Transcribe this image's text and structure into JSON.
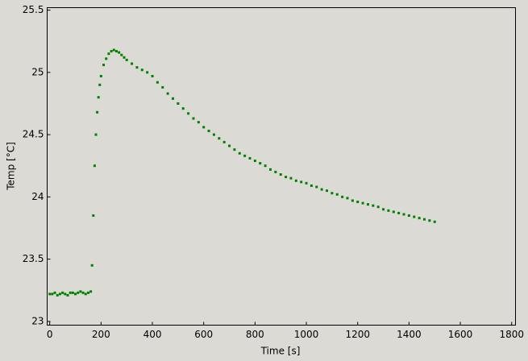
{
  "chart_data": {
    "type": "scatter",
    "xlabel": "Time [s]",
    "ylabel": "Temp [°C]",
    "color": "#008000",
    "grid": false,
    "xlim": [
      -10,
      1815
    ],
    "ylim": [
      22.97,
      25.52
    ],
    "xticks": [
      0,
      200,
      400,
      600,
      800,
      1000,
      1200,
      1400,
      1600,
      1800
    ],
    "yticks": [
      23,
      23.5,
      24,
      24.5,
      25,
      25.5
    ],
    "x": [
      0,
      10,
      20,
      30,
      40,
      50,
      60,
      70,
      80,
      90,
      100,
      110,
      120,
      130,
      140,
      150,
      160,
      165,
      170,
      175,
      180,
      185,
      190,
      195,
      200,
      210,
      220,
      230,
      240,
      250,
      260,
      270,
      280,
      290,
      300,
      320,
      340,
      360,
      380,
      400,
      420,
      440,
      460,
      480,
      500,
      520,
      540,
      560,
      580,
      600,
      620,
      640,
      660,
      680,
      700,
      720,
      740,
      760,
      780,
      800,
      820,
      840,
      860,
      880,
      900,
      920,
      940,
      960,
      980,
      1000,
      1020,
      1040,
      1060,
      1080,
      1100,
      1120,
      1140,
      1160,
      1180,
      1200,
      1220,
      1240,
      1260,
      1280,
      1300,
      1320,
      1340,
      1360,
      1380,
      1400,
      1420,
      1440,
      1460,
      1480,
      1500
    ],
    "values": [
      23.22,
      23.22,
      23.23,
      23.21,
      23.22,
      23.23,
      23.22,
      23.21,
      23.23,
      23.23,
      23.22,
      23.23,
      23.24,
      23.23,
      23.22,
      23.23,
      23.24,
      23.45,
      23.85,
      24.25,
      24.5,
      24.68,
      24.8,
      24.9,
      24.97,
      25.06,
      25.11,
      25.15,
      25.17,
      25.18,
      25.17,
      25.16,
      25.14,
      25.12,
      25.1,
      25.07,
      25.04,
      25.02,
      25.0,
      24.97,
      24.92,
      24.88,
      24.83,
      24.79,
      24.75,
      24.71,
      24.67,
      24.63,
      24.6,
      24.56,
      24.53,
      24.5,
      24.47,
      24.44,
      24.41,
      24.38,
      24.35,
      24.33,
      24.31,
      24.29,
      24.27,
      24.25,
      24.22,
      24.2,
      24.18,
      24.16,
      24.15,
      24.13,
      24.12,
      24.11,
      24.09,
      24.08,
      24.06,
      24.05,
      24.03,
      24.02,
      24.0,
      23.99,
      23.97,
      23.96,
      23.95,
      23.94,
      23.93,
      23.92,
      23.9,
      23.89,
      23.88,
      23.87,
      23.86,
      23.85,
      23.84,
      23.83,
      23.82,
      23.81,
      23.8
    ]
  }
}
